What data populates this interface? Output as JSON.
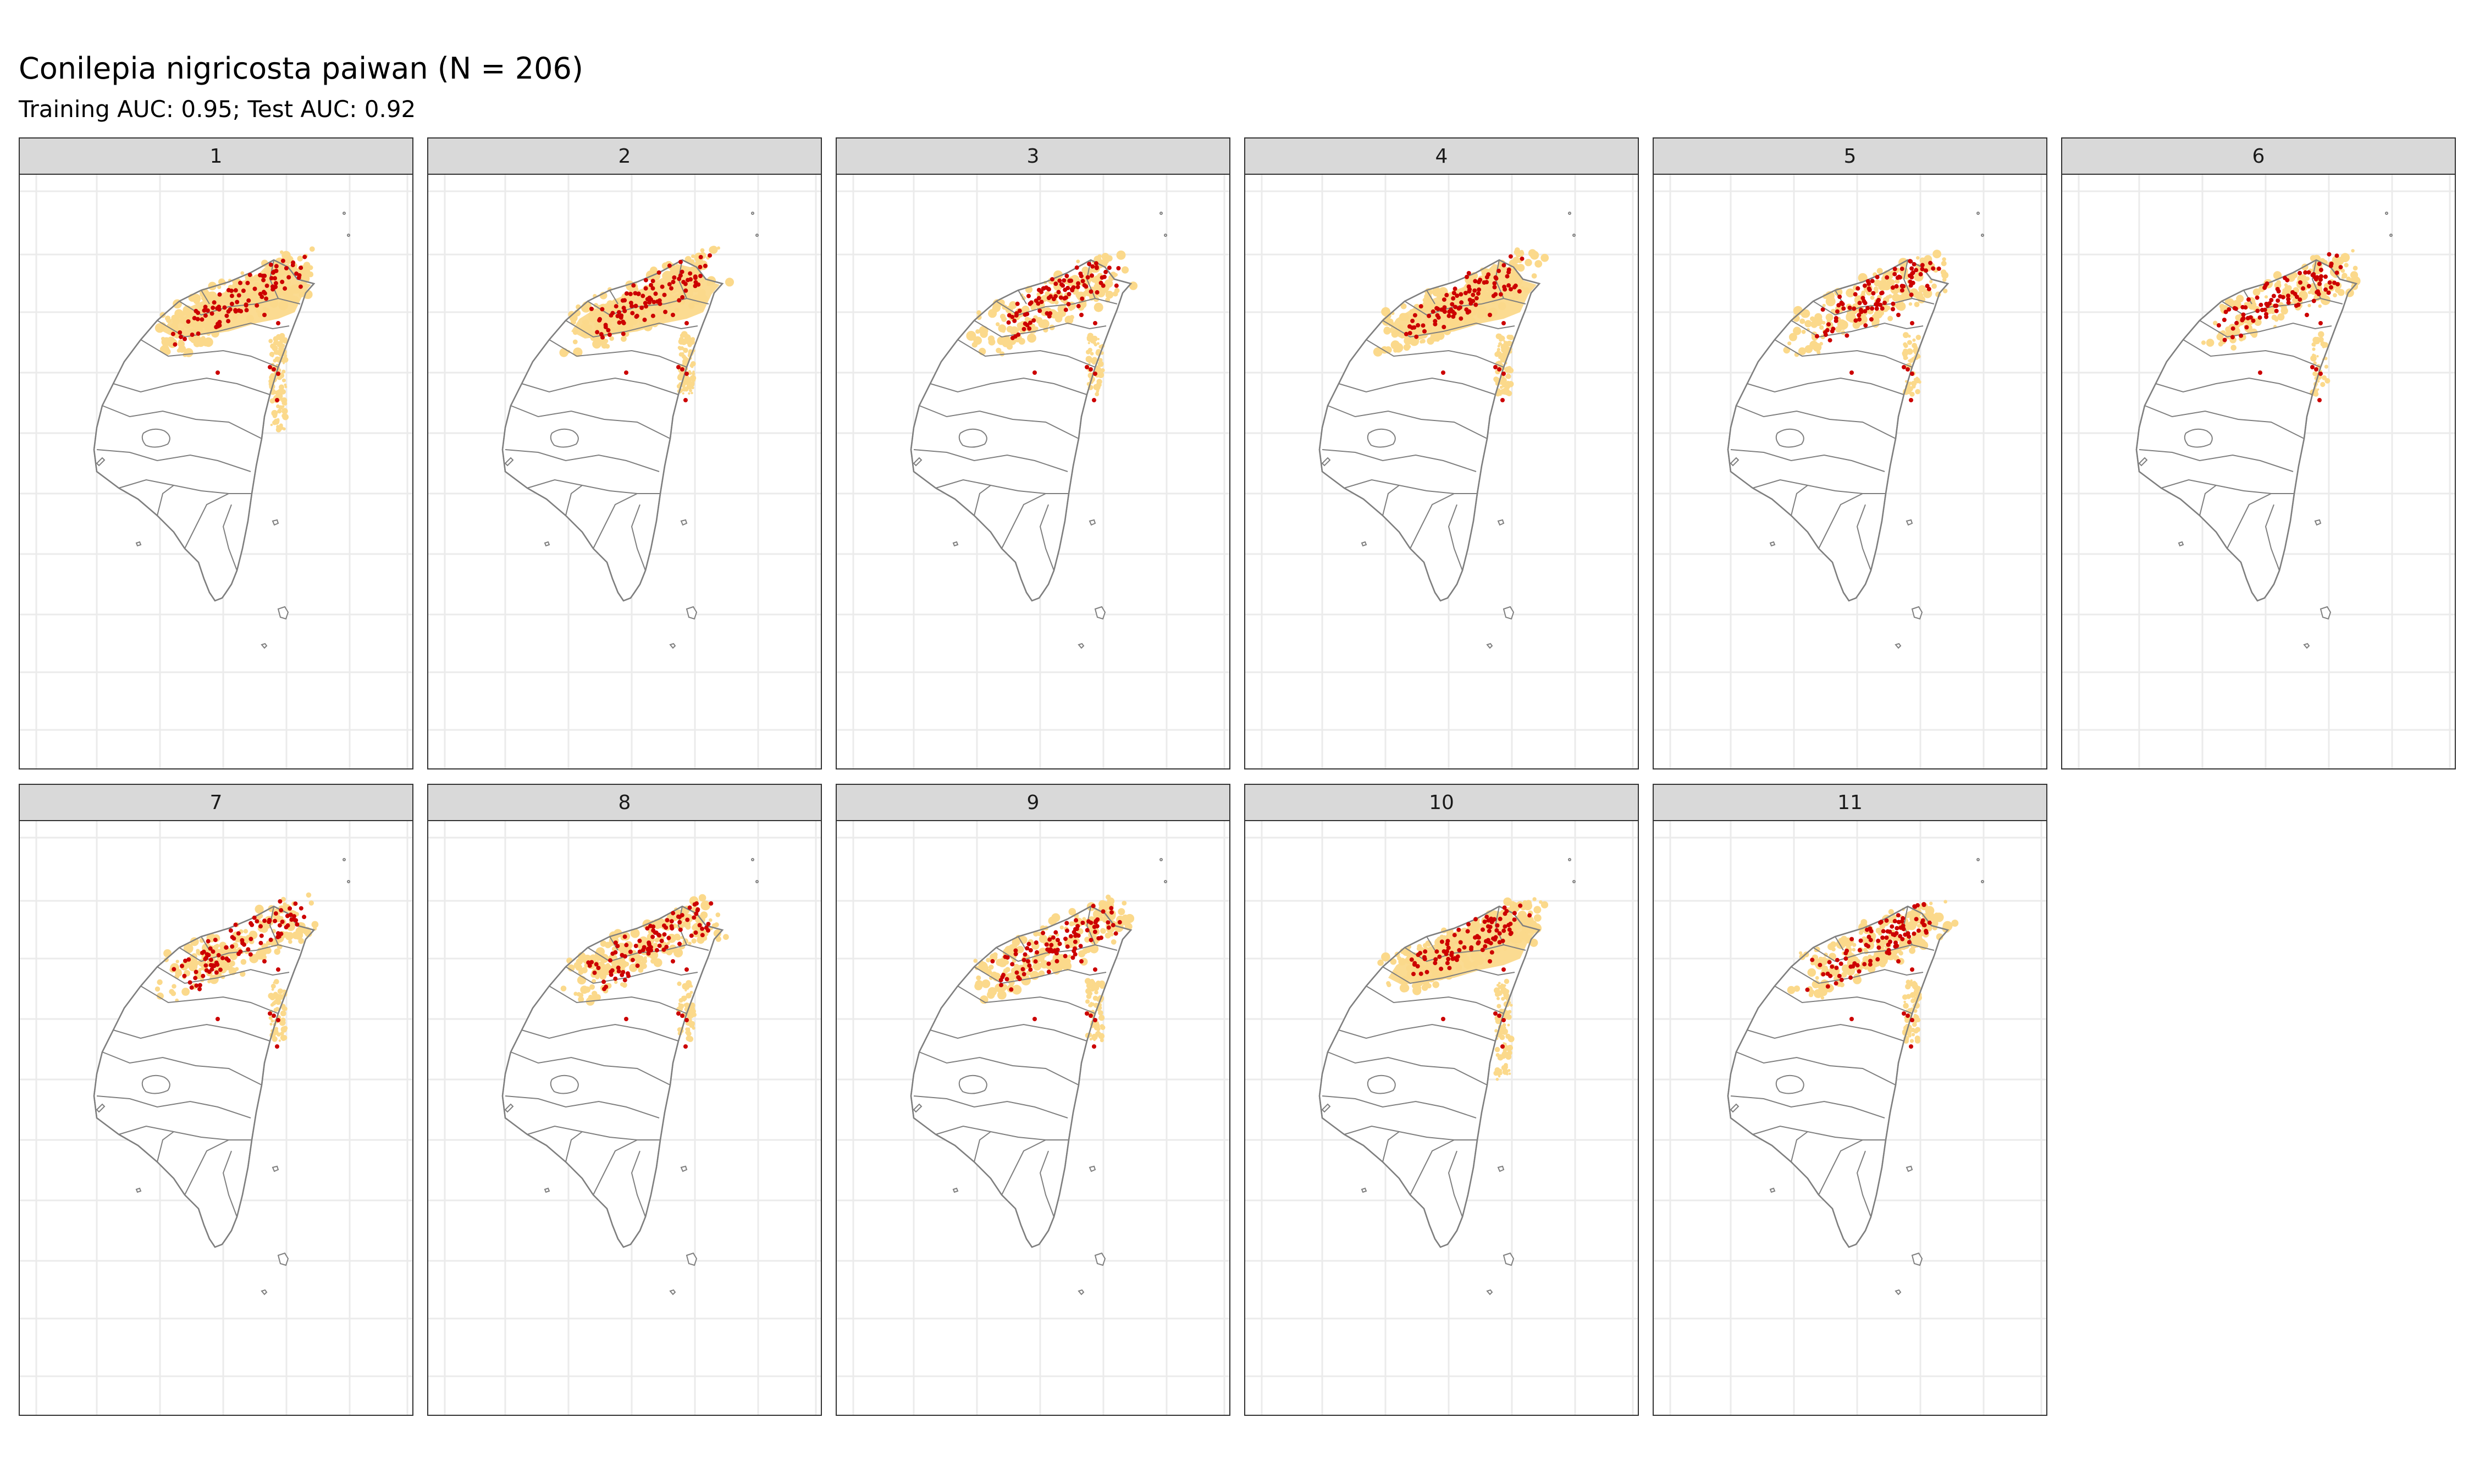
{
  "header": {
    "title": "Conilepia nigricosta paiwan (N = 206)",
    "subtitle": "Training AUC: 0.95; Test AUC: 0.92"
  },
  "colors": {
    "strip_bg": "#d9d9d9",
    "panel_border": "#333333",
    "grid": "#ebebeb",
    "outline": "#7f7f7f",
    "suitable_habitat": "#fbd98b",
    "occurrence_point": "#cc0000"
  },
  "legend_note": "",
  "panels": [
    {
      "label": "1"
    },
    {
      "label": "2"
    },
    {
      "label": "3"
    },
    {
      "label": "4"
    },
    {
      "label": "5"
    },
    {
      "label": "6"
    },
    {
      "label": "7"
    },
    {
      "label": "8"
    },
    {
      "label": "9"
    },
    {
      "label": "10"
    },
    {
      "label": "11"
    }
  ]
}
